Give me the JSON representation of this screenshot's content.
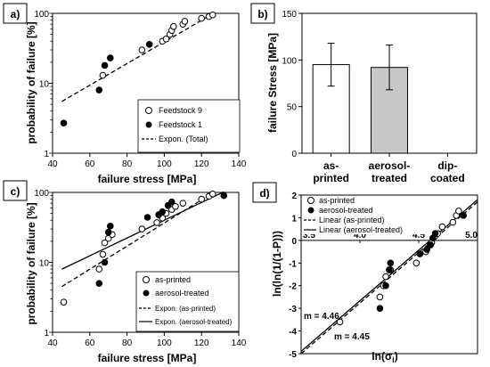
{
  "chart_data": [
    {
      "id": "a",
      "panel_label": "a)",
      "type": "scatter",
      "xlabel": "failure stress [MPa]",
      "ylabel": "probability of failure [%]",
      "xlim": [
        40,
        140
      ],
      "ylim": [
        1,
        100
      ],
      "yscale": "log",
      "xticks": [
        40,
        60,
        80,
        100,
        120,
        140
      ],
      "yticks": [
        1,
        10,
        100
      ],
      "grid": false,
      "legend": "bottom-right",
      "series": [
        {
          "name": "Feedstock 9",
          "marker": "open-circle",
          "x": [
            67,
            88,
            99,
            101,
            103,
            104,
            105,
            110,
            111,
            120,
            124,
            126
          ],
          "y": [
            13,
            30,
            40,
            43,
            50,
            57,
            65,
            70,
            77,
            85,
            90,
            95
          ]
        },
        {
          "name": "Feedstock 1",
          "marker": "filled-circle",
          "x": [
            46,
            65,
            68,
            71,
            92
          ],
          "y": [
            2.7,
            8,
            18,
            23,
            36
          ]
        },
        {
          "name": "Expon. (Total)",
          "line": "dashed",
          "x": [
            45,
            127
          ],
          "y": [
            5.5,
            102
          ]
        }
      ]
    },
    {
      "id": "b",
      "panel_label": "b)",
      "type": "bar",
      "ylabel": "failure Stress [MPa]",
      "ylim": [
        0,
        150
      ],
      "yticks": [
        0,
        50,
        100,
        150
      ],
      "categories": [
        "as-\nprinted",
        "aerosol-\ntreated",
        "dip-\ncoated"
      ],
      "values": [
        95,
        92,
        0
      ],
      "errors": [
        23,
        24,
        0
      ],
      "colors": [
        "#ffffff",
        "#c8c8c8",
        "#ffffff"
      ]
    },
    {
      "id": "c",
      "panel_label": "c)",
      "type": "scatter",
      "xlabel": "failure stress [MPa]",
      "ylabel": "probability of failure [%]",
      "xlim": [
        40,
        140
      ],
      "ylim": [
        1,
        100
      ],
      "yscale": "log",
      "xticks": [
        40,
        60,
        80,
        100,
        120,
        140
      ],
      "yticks": [
        1,
        10,
        100
      ],
      "grid": false,
      "legend": "bottom-right",
      "series": [
        {
          "name": "as-printed",
          "marker": "open-circle",
          "x": [
            46,
            65,
            67,
            68,
            70,
            72,
            88,
            96,
            99,
            101,
            104,
            106,
            110,
            120,
            124,
            126
          ],
          "y": [
            2.7,
            8,
            13,
            19,
            22,
            25,
            30,
            37,
            43,
            50,
            57,
            63,
            70,
            80,
            88,
            95
          ]
        },
        {
          "name": "aerosol-treated",
          "marker": "filled-circle",
          "x": [
            65,
            68,
            70,
            71,
            91,
            97,
            99,
            102,
            104,
            132
          ],
          "y": [
            5,
            10,
            27,
            33,
            44,
            48,
            53,
            65,
            73,
            90
          ]
        },
        {
          "name": "Expon. (as-printed)",
          "line": "dashed",
          "x": [
            45,
            127
          ],
          "y": [
            4.5,
            102
          ]
        },
        {
          "name": "Expon. (aerosol-treated)",
          "line": "solid",
          "x": [
            45,
            132
          ],
          "y": [
            8,
            102
          ]
        }
      ]
    },
    {
      "id": "d",
      "panel_label": "d)",
      "type": "scatter",
      "xlabel": "ln(σi)",
      "ylabel": "ln(ln(1/(1-P)))",
      "xlim": [
        3.5,
        5.0
      ],
      "ylim": [
        -5,
        2
      ],
      "xticks": [
        "3.5",
        "4.0",
        "4.5",
        "5.0"
      ],
      "yticks": [
        -5,
        -4,
        -3,
        -2,
        -1,
        0,
        1,
        2
      ],
      "grid": false,
      "legend": "top-left",
      "annotations": [
        "m = 4.46",
        "m = 4.45"
      ],
      "series": [
        {
          "name": "as-printed",
          "marker": "open-circle",
          "x": [
            3.83,
            4.17,
            4.2,
            4.22,
            4.25,
            4.26,
            4.48,
            4.56,
            4.6,
            4.61,
            4.64,
            4.66,
            4.7,
            4.79,
            4.82,
            4.84
          ],
          "y": [
            -3.6,
            -2.5,
            -2.0,
            -1.6,
            -1.3,
            -1.3,
            -1.0,
            -0.5,
            -0.2,
            -0.1,
            0.2,
            0.3,
            0.6,
            0.8,
            1.1,
            1.3
          ]
        },
        {
          "name": "aerosol-treated",
          "marker": "filled-circle",
          "x": [
            4.17,
            4.22,
            4.25,
            4.26,
            4.51,
            4.57,
            4.6,
            4.62,
            4.64,
            4.88
          ],
          "y": [
            -3.0,
            -2.0,
            -1.3,
            -1.0,
            -0.6,
            -0.4,
            -0.2,
            0.1,
            0.3,
            1.1
          ]
        },
        {
          "name": "Linear (as-printed)",
          "line": "dashed",
          "x": [
            3.5,
            5.0
          ],
          "y": [
            -5.0,
            1.7
          ]
        },
        {
          "name": "Linear (aerosol-treated)",
          "line": "solid",
          "x": [
            3.5,
            5.0
          ],
          "y": [
            -4.9,
            1.8
          ]
        }
      ]
    }
  ]
}
